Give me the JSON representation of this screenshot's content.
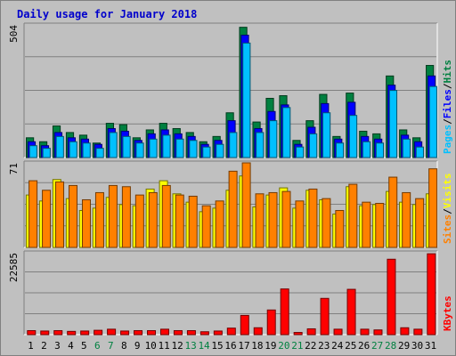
{
  "title": "Daily usage for January 2018",
  "colors": {
    "title": "#0000cc",
    "hits": "#008040",
    "files": "#0000ff",
    "pages": "#00c0ff",
    "visits": "#ffff00",
    "sites": "#ff8000",
    "kbytes": "#ff0000",
    "weekend_label": "#008040",
    "weekday_label": "#000000",
    "plot_bg": "#c0c0c0",
    "grid": "#808080"
  },
  "panels": {
    "top": {
      "max_label": "504",
      "legend": [
        "Pages",
        "/",
        "Files",
        "/",
        "Hits"
      ]
    },
    "middle": {
      "max_label": "71",
      "legend": [
        "Sites",
        "/",
        "Visits"
      ]
    },
    "bottom": {
      "max_label": "22585",
      "legend": [
        "KBytes"
      ]
    }
  },
  "chart_data": [
    {
      "type": "bar",
      "title": "Daily usage for January 2018",
      "ylabel": "Pages / Files / Hits",
      "categories": [
        "1",
        "2",
        "3",
        "4",
        "5",
        "6",
        "7",
        "8",
        "9",
        "10",
        "11",
        "12",
        "13",
        "14",
        "15",
        "16",
        "17",
        "18",
        "19",
        "20",
        "21",
        "22",
        "23",
        "24",
        "25",
        "26",
        "27",
        "28",
        "29",
        "30",
        "31"
      ],
      "weekend_days": [
        "6",
        "7",
        "13",
        "14",
        "20",
        "21",
        "27",
        "28"
      ],
      "ymax": 504,
      "series": [
        {
          "name": "Hits",
          "values": [
            75,
            60,
            120,
            95,
            85,
            55,
            130,
            125,
            75,
            105,
            130,
            110,
            95,
            60,
            80,
            170,
            495,
            135,
            225,
            235,
            65,
            140,
            240,
            80,
            245,
            100,
            90,
            310,
            105,
            75,
            350
          ]
        },
        {
          "name": "Files",
          "values": [
            60,
            45,
            95,
            75,
            70,
            50,
            110,
            100,
            65,
            90,
            105,
            90,
            80,
            50,
            65,
            140,
            465,
            110,
            175,
            200,
            50,
            115,
            205,
            70,
            210,
            80,
            70,
            275,
            85,
            60,
            310
          ]
        },
        {
          "name": "Pages",
          "values": [
            45,
            35,
            80,
            60,
            55,
            35,
            95,
            80,
            55,
            70,
            85,
            70,
            65,
            40,
            50,
            95,
            435,
            95,
            140,
            190,
            40,
            90,
            170,
            55,
            160,
            60,
            55,
            255,
            70,
            40,
            270
          ]
        }
      ]
    },
    {
      "type": "bar",
      "ylabel": "Sites / Visits",
      "categories": [
        "1",
        "2",
        "3",
        "4",
        "5",
        "6",
        "7",
        "8",
        "9",
        "10",
        "11",
        "12",
        "13",
        "14",
        "15",
        "16",
        "17",
        "18",
        "19",
        "20",
        "21",
        "22",
        "23",
        "24",
        "25",
        "26",
        "27",
        "28",
        "29",
        "30",
        "31"
      ],
      "ymax": 71,
      "series": [
        {
          "name": "Visits",
          "values": [
            44,
            39,
            57,
            41,
            31,
            33,
            42,
            36,
            35,
            49,
            56,
            45,
            38,
            30,
            33,
            48,
            60,
            34,
            44,
            50,
            33,
            48,
            40,
            28,
            51,
            35,
            36,
            47,
            38,
            36,
            45
          ]
        },
        {
          "name": "Sites",
          "values": [
            56,
            48,
            55,
            52,
            40,
            46,
            52,
            51,
            44,
            46,
            52,
            44,
            43,
            35,
            39,
            64,
            71,
            45,
            46,
            47,
            39,
            49,
            41,
            31,
            53,
            38,
            37,
            59,
            46,
            41,
            66
          ]
        }
      ]
    },
    {
      "type": "bar",
      "ylabel": "KBytes",
      "categories": [
        "1",
        "2",
        "3",
        "4",
        "5",
        "6",
        "7",
        "8",
        "9",
        "10",
        "11",
        "12",
        "13",
        "14",
        "15",
        "16",
        "17",
        "18",
        "19",
        "20",
        "21",
        "22",
        "23",
        "24",
        "25",
        "26",
        "27",
        "28",
        "29",
        "30",
        "31"
      ],
      "ymax": 22585,
      "series": [
        {
          "name": "KBytes",
          "values": [
            1100,
            1000,
            1100,
            900,
            1000,
            1200,
            1500,
            1000,
            1100,
            1100,
            1500,
            1100,
            1100,
            800,
            1000,
            1800,
            5300,
            1900,
            6800,
            12600,
            600,
            1600,
            10000,
            1500,
            12500,
            1500,
            1300,
            20800,
            1900,
            1500,
            22300
          ]
        }
      ]
    }
  ]
}
